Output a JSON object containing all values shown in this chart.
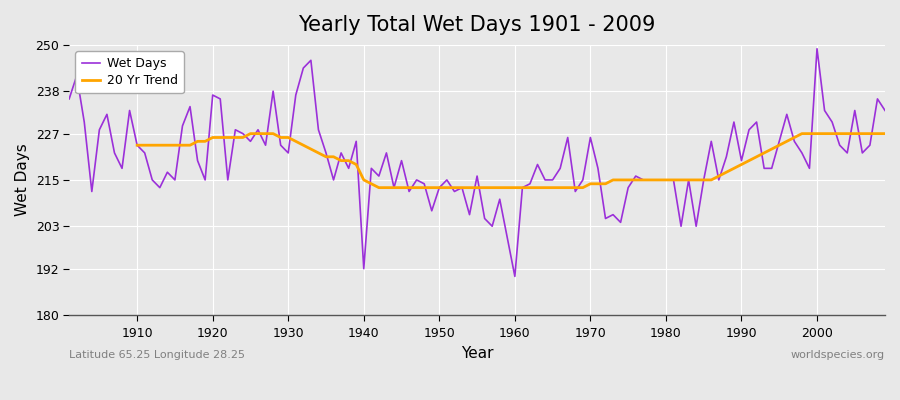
{
  "title": "Yearly Total Wet Days 1901 - 2009",
  "xlabel": "Year",
  "ylabel": "Wet Days",
  "footnote_left": "Latitude 65.25 Longitude 28.25",
  "footnote_right": "worldspecies.org",
  "xlim": [
    1901,
    2009
  ],
  "ylim": [
    180,
    250
  ],
  "yticks": [
    180,
    192,
    203,
    215,
    227,
    238,
    250
  ],
  "xticks": [
    1910,
    1920,
    1930,
    1940,
    1950,
    1960,
    1970,
    1980,
    1990,
    2000
  ],
  "wet_days_color": "#9B30D9",
  "trend_color": "#FFA500",
  "background_color": "#E8E8E8",
  "plot_bg_color": "#E8E8E8",
  "legend_labels": [
    "Wet Days",
    "20 Yr Trend"
  ],
  "years": [
    1901,
    1902,
    1903,
    1904,
    1905,
    1906,
    1907,
    1908,
    1909,
    1910,
    1911,
    1912,
    1913,
    1914,
    1915,
    1916,
    1917,
    1918,
    1919,
    1920,
    1921,
    1922,
    1923,
    1924,
    1925,
    1926,
    1927,
    1928,
    1929,
    1930,
    1931,
    1932,
    1933,
    1934,
    1935,
    1936,
    1937,
    1938,
    1939,
    1940,
    1941,
    1942,
    1943,
    1944,
    1945,
    1946,
    1947,
    1948,
    1949,
    1950,
    1951,
    1952,
    1953,
    1954,
    1955,
    1956,
    1957,
    1958,
    1959,
    1960,
    1961,
    1962,
    1963,
    1964,
    1965,
    1966,
    1967,
    1968,
    1969,
    1970,
    1971,
    1972,
    1973,
    1974,
    1975,
    1976,
    1977,
    1978,
    1979,
    1980,
    1981,
    1982,
    1983,
    1984,
    1985,
    1986,
    1987,
    1988,
    1989,
    1990,
    1991,
    1992,
    1993,
    1994,
    1995,
    1996,
    1997,
    1998,
    1999,
    2000,
    2001,
    2002,
    2003,
    2004,
    2005,
    2006,
    2007,
    2008,
    2009
  ],
  "wet_days": [
    236,
    242,
    230,
    212,
    228,
    232,
    222,
    218,
    233,
    224,
    222,
    215,
    213,
    217,
    215,
    229,
    234,
    220,
    215,
    237,
    236,
    215,
    228,
    227,
    225,
    228,
    224,
    238,
    224,
    222,
    237,
    244,
    246,
    228,
    222,
    215,
    222,
    218,
    225,
    192,
    218,
    216,
    222,
    213,
    220,
    212,
    215,
    214,
    207,
    213,
    215,
    212,
    213,
    206,
    216,
    205,
    203,
    210,
    200,
    190,
    213,
    214,
    219,
    215,
    215,
    218,
    226,
    212,
    215,
    226,
    218,
    205,
    206,
    204,
    213,
    216,
    215,
    215,
    215,
    215,
    215,
    203,
    215,
    203,
    215,
    225,
    215,
    221,
    230,
    220,
    228,
    230,
    218,
    218,
    225,
    232,
    225,
    222,
    218,
    249,
    233,
    230,
    224,
    222,
    233,
    222,
    224,
    236,
    233
  ],
  "trend_years": [
    1910,
    1911,
    1912,
    1913,
    1914,
    1915,
    1916,
    1917,
    1918,
    1919,
    1920,
    1921,
    1922,
    1923,
    1924,
    1925,
    1926,
    1927,
    1928,
    1929,
    1930,
    1931,
    1932,
    1933,
    1934,
    1935,
    1936,
    1937,
    1938,
    1939,
    1940,
    1941,
    1942,
    1943,
    1944,
    1945,
    1946,
    1947,
    1948,
    1949,
    1950,
    1951,
    1952,
    1953,
    1954,
    1955,
    1956,
    1957,
    1958,
    1959,
    1960,
    1961,
    1962,
    1963,
    1964,
    1965,
    1966,
    1967,
    1968,
    1969,
    1970,
    1971,
    1972,
    1973,
    1974,
    1975,
    1976,
    1977,
    1978,
    1979,
    1980,
    1981,
    1982,
    1983,
    1984,
    1985,
    1986,
    1987,
    1988,
    1989,
    1990,
    1991,
    1992,
    1993,
    1994,
    1995,
    1996,
    1997,
    1998,
    1999,
    2000,
    2001,
    2002,
    2003,
    2004,
    2005,
    2006,
    2007,
    2008,
    2009
  ],
  "trend": [
    224,
    224,
    224,
    224,
    224,
    224,
    224,
    224,
    225,
    225,
    226,
    226,
    226,
    226,
    226,
    227,
    227,
    227,
    227,
    226,
    226,
    225,
    224,
    223,
    222,
    221,
    221,
    220,
    220,
    219,
    215,
    214,
    213,
    213,
    213,
    213,
    213,
    213,
    213,
    213,
    213,
    213,
    213,
    213,
    213,
    213,
    213,
    213,
    213,
    213,
    213,
    213,
    213,
    213,
    213,
    213,
    213,
    213,
    213,
    213,
    214,
    214,
    214,
    215,
    215,
    215,
    215,
    215,
    215,
    215,
    215,
    215,
    215,
    215,
    215,
    215,
    215,
    216,
    217,
    218,
    219,
    220,
    221,
    222,
    223,
    224,
    225,
    226,
    227,
    227,
    227,
    227,
    227,
    227,
    227,
    227,
    227,
    227,
    227,
    227
  ]
}
